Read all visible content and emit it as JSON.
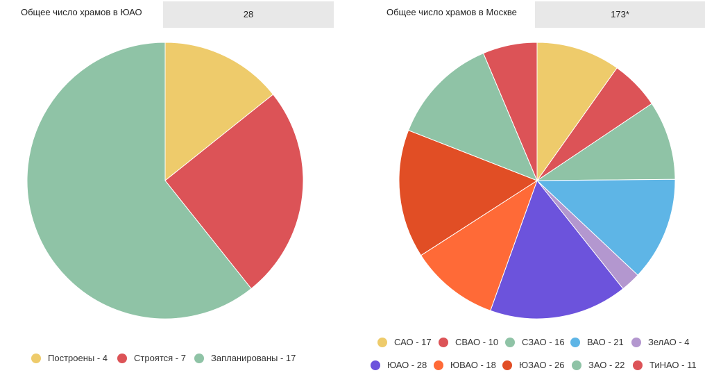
{
  "left_panel": {
    "label": "Общее число храмов в ЮАО",
    "value": "28"
  },
  "right_panel": {
    "label": "Общее число храмов в Москве",
    "value": "173*"
  },
  "chart_data": [
    {
      "type": "pie",
      "title": "",
      "legend_position": "bottom",
      "slices": [
        {
          "label": "Построены - 4",
          "value": 4,
          "color": "#eecb6b"
        },
        {
          "label": "Строятся - 7",
          "value": 7,
          "color": "#dc5357"
        },
        {
          "label": "Запланированы - 17",
          "value": 17,
          "color": "#8fc3a6"
        }
      ]
    },
    {
      "type": "pie",
      "title": "",
      "legend_position": "bottom",
      "slices": [
        {
          "label": "САО - 17",
          "value": 17,
          "color": "#eecb6b"
        },
        {
          "label": "СВАО - 10",
          "value": 10,
          "color": "#dc5357"
        },
        {
          "label": "СЗАО - 16",
          "value": 16,
          "color": "#8fc3a6"
        },
        {
          "label": "ВАО - 21",
          "value": 21,
          "color": "#5eb5e6"
        },
        {
          "label": "ЗелАО - 4",
          "value": 4,
          "color": "#b397cf"
        },
        {
          "label": "ЮАО - 28",
          "value": 28,
          "color": "#6c53dc"
        },
        {
          "label": "ЮВАО - 18",
          "value": 18,
          "color": "#ff6a37"
        },
        {
          "label": "ЮЗАО - 26",
          "value": 26,
          "color": "#e14e25"
        },
        {
          "label": "ЗАО - 22",
          "value": 22,
          "color": "#8fc3a6"
        },
        {
          "label": "ТиНАО - 11",
          "value": 11,
          "color": "#dc5357"
        }
      ]
    }
  ]
}
